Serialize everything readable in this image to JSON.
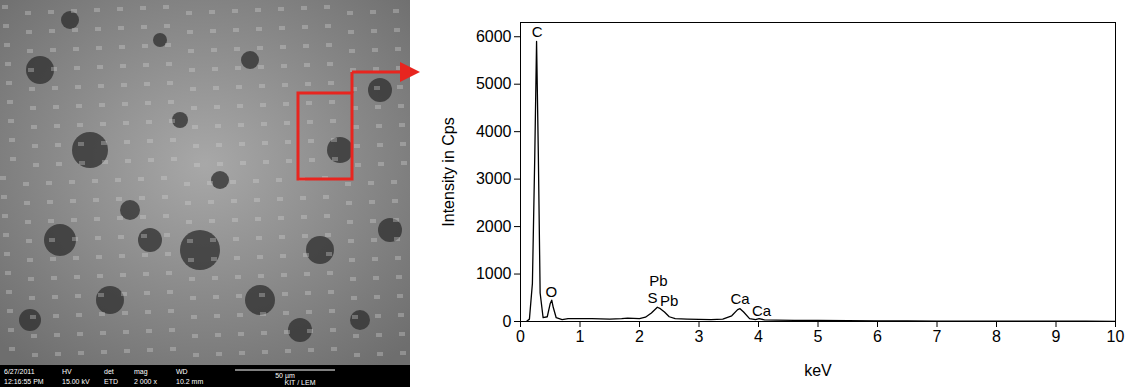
{
  "chart_data": {
    "type": "line",
    "x_label": "keV",
    "y_label": "Intensity in Cps",
    "color": "#000000",
    "x": [
      0.1,
      0.15,
      0.2,
      0.24,
      0.27,
      0.3,
      0.33,
      0.38,
      0.45,
      0.5,
      0.525,
      0.55,
      0.6,
      0.7,
      0.8,
      1.0,
      1.2,
      1.5,
      1.7,
      1.8,
      2.0,
      2.1,
      2.2,
      2.3,
      2.35,
      2.42,
      2.5,
      2.6,
      2.8,
      3.0,
      3.2,
      3.4,
      3.55,
      3.65,
      3.69,
      3.75,
      3.85,
      3.95,
      4.01,
      4.1,
      4.3,
      4.6,
      5.0,
      5.5,
      6.0,
      6.5,
      7.0,
      7.5,
      8.0,
      8.5,
      9.0,
      9.5,
      10.0
    ],
    "values": [
      0,
      50,
      800,
      3500,
      5900,
      3500,
      600,
      80,
      100,
      380,
      450,
      300,
      80,
      40,
      60,
      60,
      60,
      50,
      60,
      70,
      60,
      90,
      180,
      300,
      270,
      200,
      100,
      60,
      50,
      45,
      40,
      50,
      120,
      250,
      270,
      200,
      60,
      40,
      60,
      35,
      30,
      25,
      22,
      18,
      15,
      12,
      10,
      8,
      8,
      6,
      5,
      5,
      4
    ],
    "xlim": [
      0,
      10
    ],
    "ylim": [
      0,
      6300
    ],
    "xticks": [
      0,
      1,
      2,
      3,
      4,
      5,
      6,
      7,
      8,
      9,
      10
    ],
    "yticks": [
      0,
      1000,
      2000,
      3000,
      4000,
      5000,
      6000
    ],
    "annotations": [
      {
        "text": "C",
        "x": 0.28,
        "y": 6000
      },
      {
        "text": "O",
        "x": 0.52,
        "y": 520
      },
      {
        "text": "Pb",
        "x": 2.32,
        "y": 740
      },
      {
        "text": "S",
        "x": 2.22,
        "y": 380
      },
      {
        "text": "Pb",
        "x": 2.5,
        "y": 330
      },
      {
        "text": "Ca",
        "x": 3.69,
        "y": 360
      },
      {
        "text": "Ca",
        "x": 4.05,
        "y": 110
      }
    ]
  },
  "image": {
    "info_bar": [
      {
        "top": "6/27/2011",
        "bottom": "12:16:55 PM"
      },
      {
        "top": "HV",
        "bottom": "15.00 kV"
      },
      {
        "top": "det",
        "bottom": "ETD"
      },
      {
        "top": "mag",
        "bottom": "2 000 x"
      },
      {
        "top": "WD",
        "bottom": "10.2 mm"
      }
    ],
    "scale_bar": "50 µm",
    "institute": "KIT / LEM"
  }
}
